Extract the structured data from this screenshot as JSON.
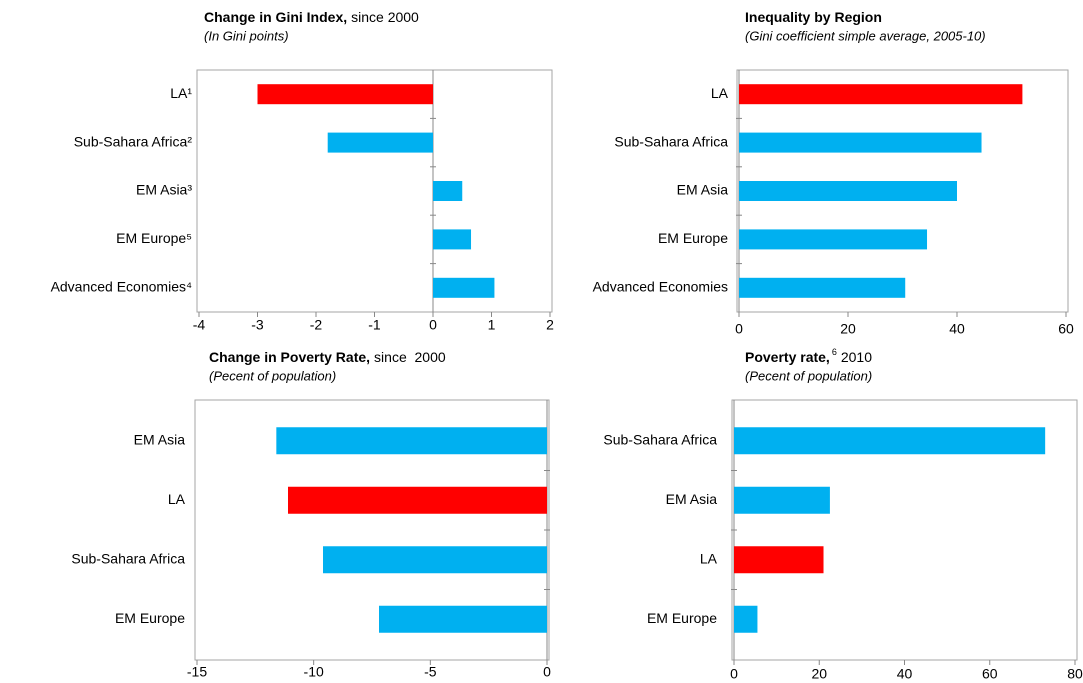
{
  "chart_data": [
    {
      "type": "hbar",
      "title": "Change in Gini Index,",
      "title_note": "since 2000",
      "subtitle": "(In Gini points)",
      "categories": [
        "LA¹",
        "Sub-Sahara Africa²",
        "EM Asia³",
        "EM Europe⁵",
        "Advanced Economies⁴"
      ],
      "values": [
        -3.0,
        -1.8,
        0.5,
        0.65,
        1.05
      ],
      "colors": [
        "#ff0000",
        "#00b0f0",
        "#00b0f0",
        "#00b0f0",
        "#00b0f0"
      ],
      "xlim": [
        -4,
        2
      ],
      "xticks": [
        -4,
        -3,
        -2,
        -1,
        0,
        1,
        2
      ]
    },
    {
      "type": "hbar",
      "title": "Inequality by Region",
      "subtitle": "(Gini coefficient simple average, 2005-10)",
      "categories": [
        "LA",
        "Sub-Sahara Africa",
        "EM Asia",
        "EM Europe",
        "Advanced Economies"
      ],
      "values": [
        52,
        44.5,
        40,
        34.5,
        30.5
      ],
      "colors": [
        "#ff0000",
        "#00b0f0",
        "#00b0f0",
        "#00b0f0",
        "#00b0f0"
      ],
      "xlim": [
        0,
        60
      ],
      "xticks": [
        0,
        20,
        40,
        60
      ]
    },
    {
      "type": "hbar",
      "title": "Change in Poverty Rate,",
      "title_note": "since  2000",
      "subtitle": "(Pecent of population)",
      "categories": [
        "EM Asia",
        "LA",
        "Sub-Sahara Africa",
        "EM Europe"
      ],
      "values": [
        -11.6,
        -11.1,
        -9.6,
        -7.2
      ],
      "colors": [
        "#00b0f0",
        "#ff0000",
        "#00b0f0",
        "#00b0f0"
      ],
      "xlim": [
        -15,
        0
      ],
      "xticks": [
        -15,
        -10,
        -5,
        0
      ]
    },
    {
      "type": "hbar",
      "title": "Poverty rate,",
      "title_footnote": "6",
      "title_note": "2010",
      "subtitle": "(Pecent of population)",
      "categories": [
        "Sub-Sahara Africa",
        "EM Asia",
        "LA",
        "EM Europe"
      ],
      "values": [
        73,
        22.5,
        21,
        5.5
      ],
      "colors": [
        "#00b0f0",
        "#00b0f0",
        "#ff0000",
        "#00b0f0"
      ],
      "xlim": [
        0,
        80
      ],
      "xticks": [
        0,
        20,
        40,
        60,
        80
      ]
    }
  ]
}
